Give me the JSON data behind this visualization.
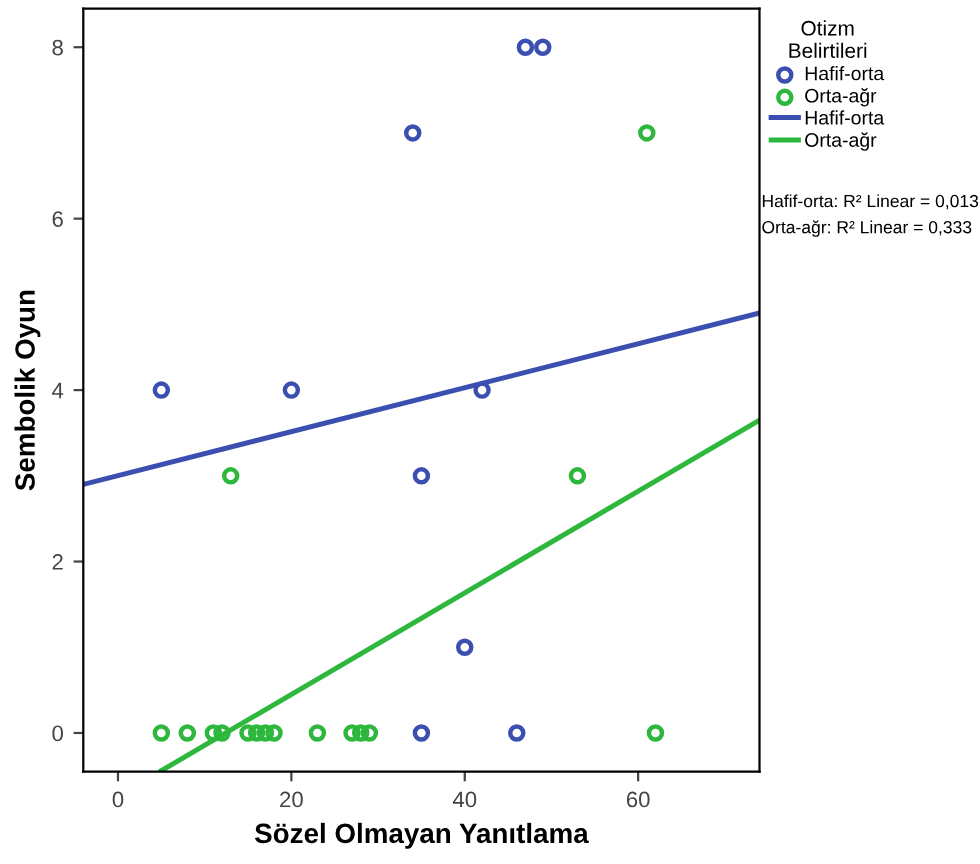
{
  "chart_data": {
    "type": "scatter",
    "xlabel": "Sözel Olmayan Yanıtlama",
    "ylabel": "Sembolik Oyun",
    "legend_title": "Otizm\nBelirtileri",
    "xlim": [
      -4,
      74
    ],
    "ylim": [
      -0.45,
      8.45
    ],
    "xticks": [
      0,
      20,
      40,
      60
    ],
    "yticks": [
      0,
      2,
      4,
      6,
      8
    ],
    "grid": false,
    "legend": "right",
    "marker": "circle",
    "series": [
      {
        "name": "Hafif-orta",
        "color": "#3a4fb0",
        "x": [
          5,
          20,
          42,
          34,
          35,
          47,
          49,
          40,
          35,
          46
        ],
        "values": [
          4,
          4,
          4,
          7,
          3,
          8,
          8,
          1,
          0,
          0
        ]
      },
      {
        "name": "Orta-ağr",
        "color": "#2db83d",
        "x": [
          5,
          8,
          11,
          12,
          15,
          16,
          17,
          18,
          23,
          27,
          28,
          29,
          62,
          13,
          53,
          61
        ],
        "values": [
          0,
          0,
          0,
          0,
          0,
          0,
          0,
          0,
          0,
          0,
          0,
          0,
          0,
          3,
          3,
          7
        ]
      },
      {
        "name": "Hafif-orta",
        "type": "line",
        "marker": "none",
        "color": "#3a4fb0",
        "x": [
          -4,
          74
        ],
        "values": [
          2.9,
          4.9
        ]
      },
      {
        "name": "Orta-ağr",
        "type": "line",
        "marker": "none",
        "color": "#2db83d",
        "x": [
          5,
          74
        ],
        "values": [
          -0.44,
          3.65
        ]
      }
    ],
    "annotations": [
      "Hafif-orta: R² Linear = 0,013",
      "Orta-ağr: R² Linear = 0,333"
    ]
  }
}
